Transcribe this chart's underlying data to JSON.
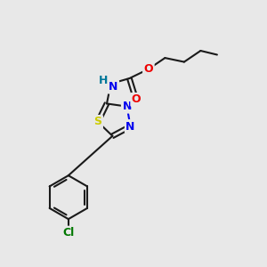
{
  "background_color": "#e8e8e8",
  "bond_color": "#1a1a1a",
  "atom_colors": {
    "N": "#0000ee",
    "O": "#ee0000",
    "S": "#cccc00",
    "Cl": "#007700",
    "H": "#007799",
    "C": "#1a1a1a"
  },
  "figsize": [
    3.0,
    3.0
  ],
  "dpi": 100
}
